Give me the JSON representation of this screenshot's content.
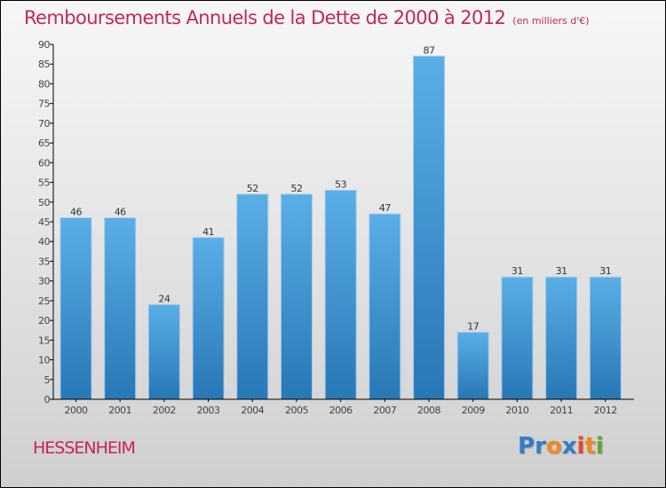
{
  "header": {
    "title": "Remboursements Annuels de la Dette de 2000 à 2012",
    "unit": "(en milliers d'€)"
  },
  "footer": {
    "commune": "HESSENHEIM",
    "logo_letters": [
      {
        "char": "P",
        "color": "#2f7fc7"
      },
      {
        "char": "r",
        "color": "#2f7fc7"
      },
      {
        "char": "o",
        "color": "#f08a1c"
      },
      {
        "char": "x",
        "color": "#2f7fc7"
      },
      {
        "char": "i",
        "color": "#e5482a"
      },
      {
        "char": "t",
        "color": "#f08a1c"
      },
      {
        "char": "i",
        "color": "#5aa832"
      }
    ]
  },
  "colors": {
    "title": "#c5245e",
    "bar_top": "#5aaee6",
    "bar_bottom": "#2877b6",
    "bar_edge": "#9ccbee"
  },
  "chart_data": {
    "type": "bar",
    "title": "Remboursements Annuels de la Dette de 2000 à 2012",
    "subtitle": "(en milliers d'€)",
    "xlabel": "",
    "ylabel": "",
    "categories": [
      "2000",
      "2001",
      "2002",
      "2003",
      "2004",
      "2005",
      "2006",
      "2007",
      "2008",
      "2009",
      "2010",
      "2011",
      "2012"
    ],
    "values": [
      46,
      46,
      24,
      41,
      52,
      52,
      53,
      47,
      87,
      17,
      31,
      31,
      31
    ],
    "ylim": [
      0,
      90
    ],
    "yticks": [
      0,
      5,
      10,
      15,
      20,
      25,
      30,
      35,
      40,
      45,
      50,
      55,
      60,
      65,
      70,
      75,
      80,
      85,
      90
    ],
    "grid": false,
    "legend": "none",
    "data_labels": true
  }
}
